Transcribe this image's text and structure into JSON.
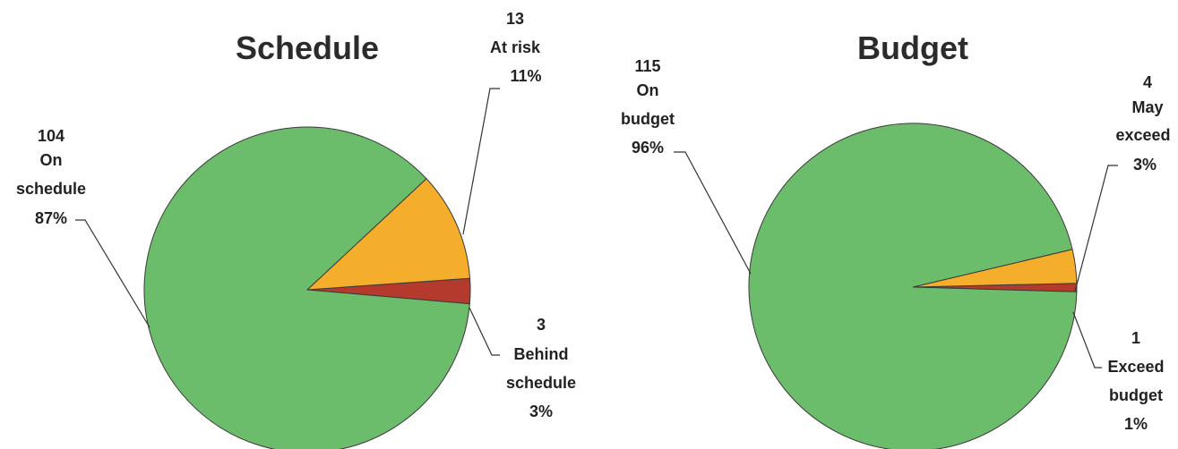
{
  "chart_data": [
    {
      "type": "pie",
      "title": "Schedule",
      "series": [
        {
          "label": "On schedule",
          "count": "104",
          "percent": "87%",
          "value": 104,
          "color": "#6cbd6b"
        },
        {
          "label": "At risk",
          "count": "13",
          "percent": "11%",
          "value": 13,
          "color": "#f5ae2c"
        },
        {
          "label": "Behind schedule",
          "count": "3",
          "percent": "3%",
          "value": 3,
          "color": "#b33a2c"
        }
      ]
    },
    {
      "type": "pie",
      "title": "Budget",
      "series": [
        {
          "label": "On budget",
          "count": "115",
          "percent": "96%",
          "value": 115,
          "color": "#6cbd6b"
        },
        {
          "label": "May exceed",
          "count": "4",
          "percent": "3%",
          "value": 4,
          "color": "#f5ae2c"
        },
        {
          "label": "Exceed budget",
          "count": "1",
          "percent": "1%",
          "value": 1,
          "color": "#b33a2c"
        }
      ]
    }
  ]
}
